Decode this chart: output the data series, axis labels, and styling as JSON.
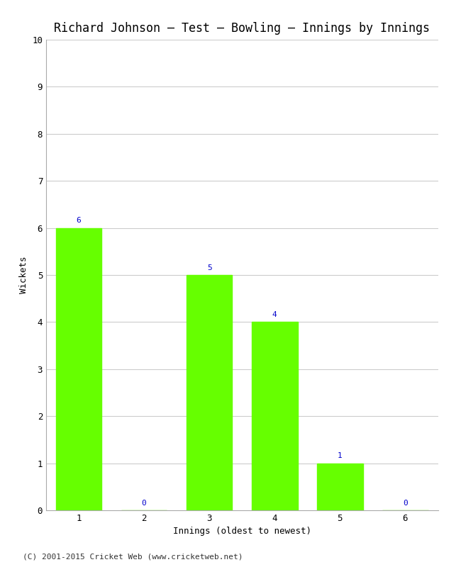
{
  "title": "Richard Johnson – Test – Bowling – Innings by Innings",
  "xlabel": "Innings (oldest to newest)",
  "ylabel": "Wickets",
  "categories": [
    1,
    2,
    3,
    4,
    5,
    6
  ],
  "values": [
    6,
    0,
    5,
    4,
    1,
    0
  ],
  "bar_color": "#66ff00",
  "bar_edge_color": "#66ff00",
  "label_color": "#0000cc",
  "ylim": [
    0,
    10
  ],
  "yticks": [
    0,
    1,
    2,
    3,
    4,
    5,
    6,
    7,
    8,
    9,
    10
  ],
  "background_color": "#ffffff",
  "grid_color": "#cccccc",
  "title_fontsize": 12,
  "axis_label_fontsize": 9,
  "tick_label_fontsize": 9,
  "bar_label_fontsize": 8,
  "footer": "(C) 2001-2015 Cricket Web (www.cricketweb.net)",
  "footer_fontsize": 8
}
